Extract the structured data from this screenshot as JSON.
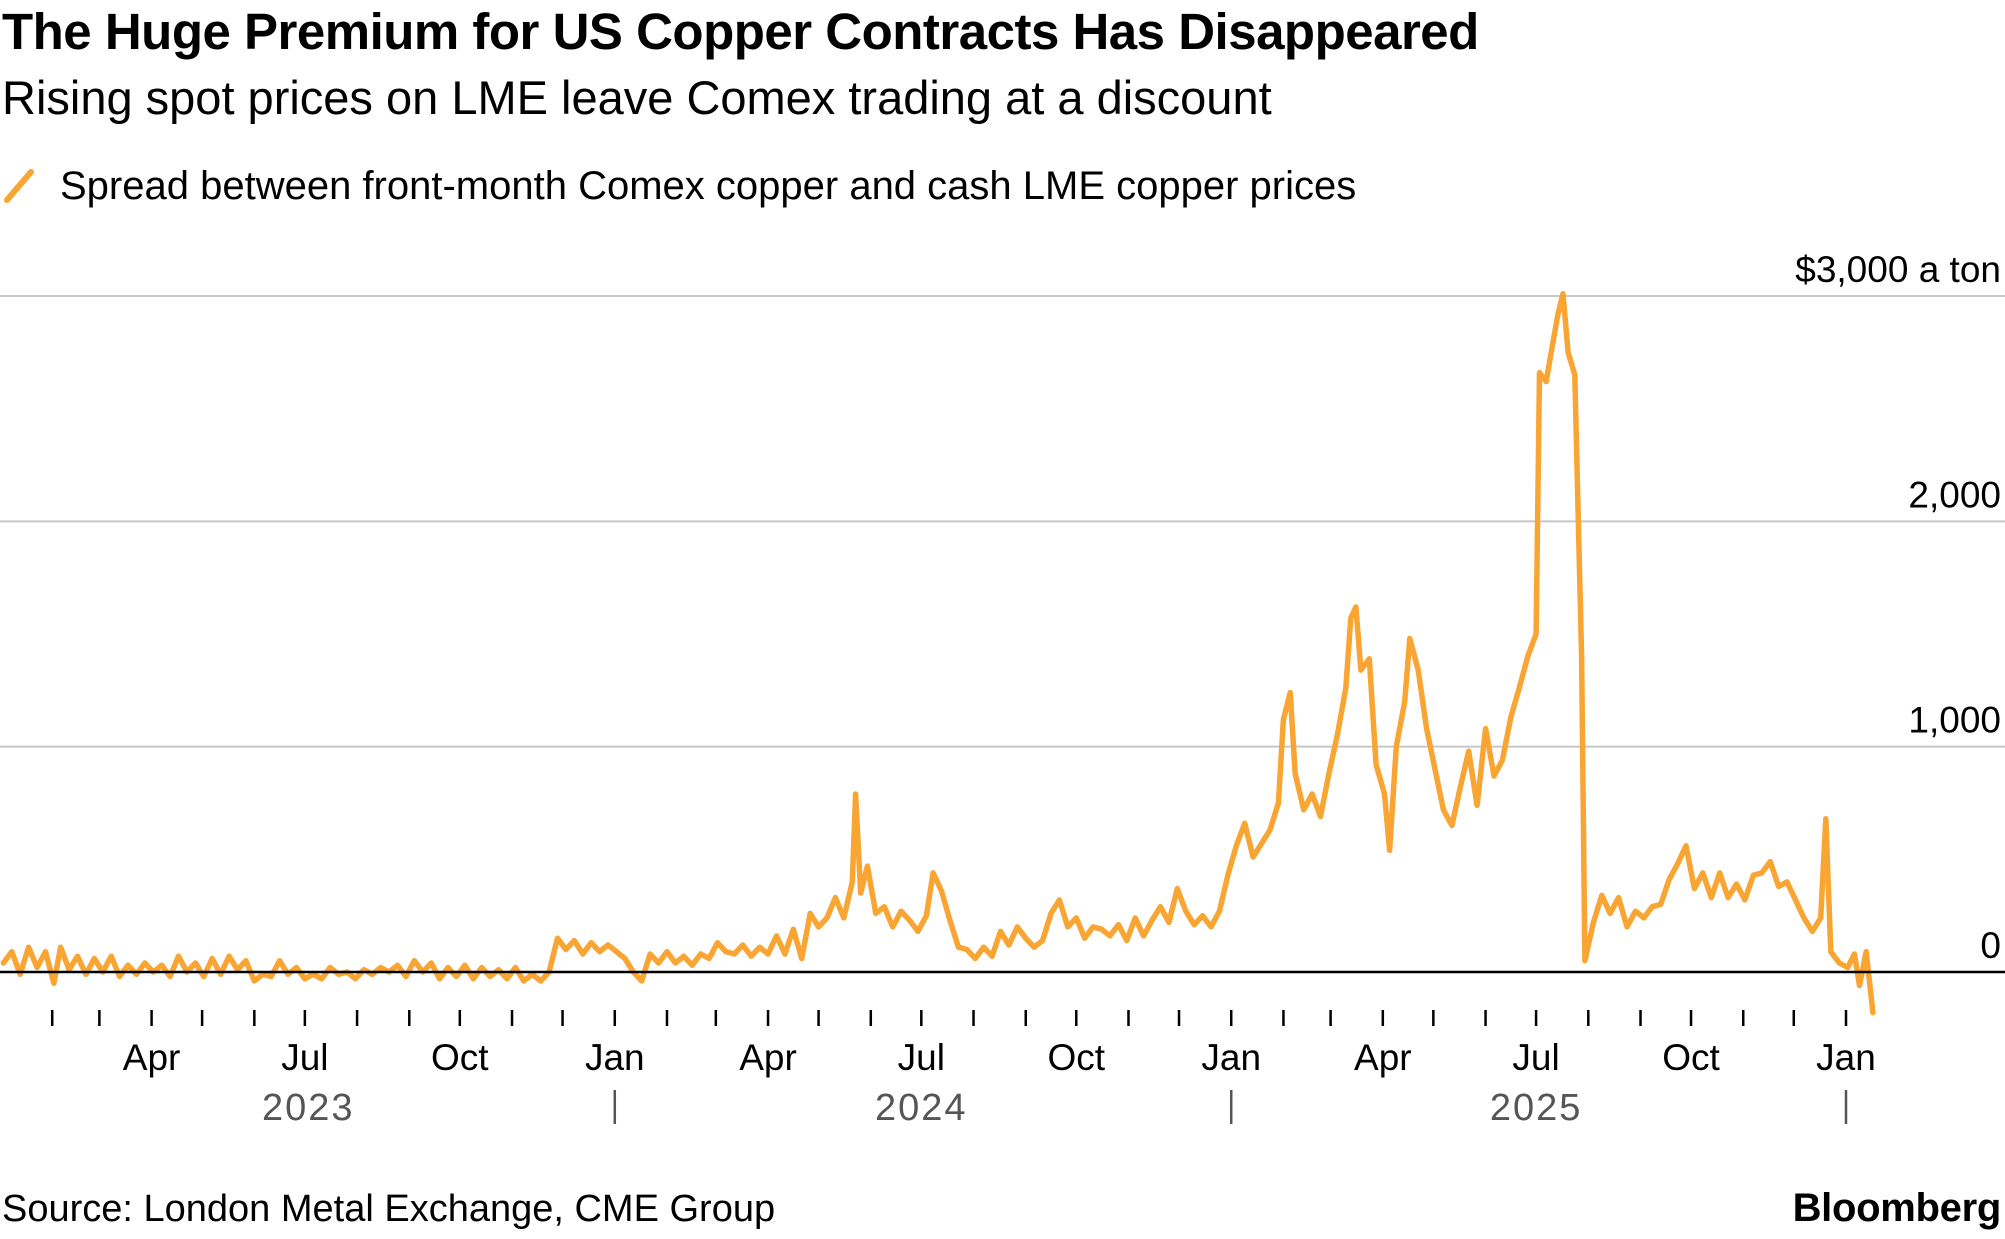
{
  "header": {
    "title": "The Huge Premium for US Copper Contracts Has Disappeared",
    "subtitle": "Rising spot prices on LME leave Comex trading at a discount"
  },
  "legend": {
    "label": "Spread between front-month Comex copper and cash LME copper prices",
    "icon": "diagonal-line-swatch"
  },
  "footer": {
    "source": "Source: London Metal Exchange, CME Group",
    "brand": "Bloomberg"
  },
  "colors": {
    "series": "#F8A533",
    "grid": "#C8C8C8",
    "zero_line": "#000000",
    "year_text": "#555555"
  },
  "chart_data": {
    "type": "line",
    "title": "The Huge Premium for US Copper Contracts Has Disappeared",
    "subtitle": "Rising spot prices on LME leave Comex trading at a discount",
    "y_unit_label": "$3,000 a ton",
    "y_ticks": [
      {
        "value": 0,
        "label": "0"
      },
      {
        "value": 1000,
        "label": "1,000"
      },
      {
        "value": 2000,
        "label": "2,000"
      },
      {
        "value": 3000,
        "label": "$3,000 a ton"
      }
    ],
    "ylim": [
      -200,
      3000
    ],
    "xlim": [
      "2023-01-01",
      "2026-01-20"
    ],
    "grid": true,
    "x_month_ticks": [
      {
        "date": "2023-04-01",
        "label": "Apr"
      },
      {
        "date": "2023-07-01",
        "label": "Jul"
      },
      {
        "date": "2023-10-01",
        "label": "Oct"
      },
      {
        "date": "2024-01-01",
        "label": "Jan"
      },
      {
        "date": "2024-04-01",
        "label": "Apr"
      },
      {
        "date": "2024-07-01",
        "label": "Jul"
      },
      {
        "date": "2024-10-01",
        "label": "Oct"
      },
      {
        "date": "2025-01-01",
        "label": "Jan"
      },
      {
        "date": "2025-04-01",
        "label": "Apr"
      },
      {
        "date": "2025-07-01",
        "label": "Jul"
      },
      {
        "date": "2025-10-01",
        "label": "Oct"
      },
      {
        "date": "2026-01-01",
        "label": "Jan"
      }
    ],
    "x_year_labels": [
      {
        "label": "2023",
        "center": "2023-07-03"
      },
      {
        "label": "2024",
        "center": "2024-07-01"
      },
      {
        "label": "2025",
        "center": "2025-07-01"
      }
    ],
    "x_year_separators": [
      "2024-01-01",
      "2025-01-01",
      "2026-01-01"
    ],
    "series": [
      {
        "name": "Spread between front-month Comex copper and cash LME copper prices",
        "points": [
          [
            "2023-01-03",
            40
          ],
          [
            "2023-01-08",
            90
          ],
          [
            "2023-01-13",
            -10
          ],
          [
            "2023-01-18",
            110
          ],
          [
            "2023-01-23",
            20
          ],
          [
            "2023-01-28",
            90
          ],
          [
            "2023-02-02",
            -50
          ],
          [
            "2023-02-06",
            110
          ],
          [
            "2023-02-11",
            10
          ],
          [
            "2023-02-16",
            70
          ],
          [
            "2023-02-21",
            -10
          ],
          [
            "2023-02-26",
            60
          ],
          [
            "2023-03-03",
            0
          ],
          [
            "2023-03-08",
            70
          ],
          [
            "2023-03-13",
            -20
          ],
          [
            "2023-03-18",
            30
          ],
          [
            "2023-03-23",
            -10
          ],
          [
            "2023-03-28",
            40
          ],
          [
            "2023-04-02",
            0
          ],
          [
            "2023-04-07",
            30
          ],
          [
            "2023-04-12",
            -20
          ],
          [
            "2023-04-17",
            70
          ],
          [
            "2023-04-22",
            0
          ],
          [
            "2023-04-27",
            40
          ],
          [
            "2023-05-02",
            -20
          ],
          [
            "2023-05-07",
            60
          ],
          [
            "2023-05-12",
            -10
          ],
          [
            "2023-05-17",
            70
          ],
          [
            "2023-05-22",
            10
          ],
          [
            "2023-05-27",
            50
          ],
          [
            "2023-06-01",
            -40
          ],
          [
            "2023-06-06",
            -10
          ],
          [
            "2023-06-11",
            -20
          ],
          [
            "2023-06-16",
            50
          ],
          [
            "2023-06-21",
            -10
          ],
          [
            "2023-06-26",
            20
          ],
          [
            "2023-07-01",
            -30
          ],
          [
            "2023-07-06",
            -10
          ],
          [
            "2023-07-11",
            -30
          ],
          [
            "2023-07-16",
            20
          ],
          [
            "2023-07-21",
            -10
          ],
          [
            "2023-07-26",
            0
          ],
          [
            "2023-07-31",
            -30
          ],
          [
            "2023-08-05",
            10
          ],
          [
            "2023-08-10",
            -10
          ],
          [
            "2023-08-15",
            20
          ],
          [
            "2023-08-20",
            0
          ],
          [
            "2023-08-25",
            30
          ],
          [
            "2023-08-30",
            -20
          ],
          [
            "2023-09-04",
            50
          ],
          [
            "2023-09-09",
            0
          ],
          [
            "2023-09-14",
            40
          ],
          [
            "2023-09-19",
            -30
          ],
          [
            "2023-09-24",
            20
          ],
          [
            "2023-09-29",
            -20
          ],
          [
            "2023-10-04",
            30
          ],
          [
            "2023-10-09",
            -30
          ],
          [
            "2023-10-14",
            20
          ],
          [
            "2023-10-19",
            -20
          ],
          [
            "2023-10-24",
            10
          ],
          [
            "2023-10-29",
            -30
          ],
          [
            "2023-11-03",
            20
          ],
          [
            "2023-11-08",
            -40
          ],
          [
            "2023-11-13",
            -10
          ],
          [
            "2023-11-18",
            -40
          ],
          [
            "2023-11-23",
            0
          ],
          [
            "2023-11-28",
            150
          ],
          [
            "2023-12-03",
            100
          ],
          [
            "2023-12-08",
            140
          ],
          [
            "2023-12-13",
            80
          ],
          [
            "2023-12-18",
            130
          ],
          [
            "2023-12-23",
            90
          ],
          [
            "2023-12-28",
            120
          ],
          [
            "2024-01-02",
            90
          ],
          [
            "2024-01-07",
            60
          ],
          [
            "2024-01-12",
            0
          ],
          [
            "2024-01-17",
            -40
          ],
          [
            "2024-01-22",
            80
          ],
          [
            "2024-01-27",
            40
          ],
          [
            "2024-02-01",
            90
          ],
          [
            "2024-02-06",
            40
          ],
          [
            "2024-02-11",
            70
          ],
          [
            "2024-02-16",
            30
          ],
          [
            "2024-02-21",
            80
          ],
          [
            "2024-02-26",
            60
          ],
          [
            "2024-03-02",
            130
          ],
          [
            "2024-03-07",
            90
          ],
          [
            "2024-03-12",
            80
          ],
          [
            "2024-03-17",
            120
          ],
          [
            "2024-03-22",
            70
          ],
          [
            "2024-03-27",
            110
          ],
          [
            "2024-04-01",
            80
          ],
          [
            "2024-04-06",
            160
          ],
          [
            "2024-04-11",
            80
          ],
          [
            "2024-04-16",
            190
          ],
          [
            "2024-04-21",
            60
          ],
          [
            "2024-04-26",
            260
          ],
          [
            "2024-05-01",
            200
          ],
          [
            "2024-05-06",
            240
          ],
          [
            "2024-05-11",
            330
          ],
          [
            "2024-05-16",
            240
          ],
          [
            "2024-05-21",
            400
          ],
          [
            "2024-05-23",
            790
          ],
          [
            "2024-05-26",
            350
          ],
          [
            "2024-05-30",
            470
          ],
          [
            "2024-06-04",
            260
          ],
          [
            "2024-06-09",
            290
          ],
          [
            "2024-06-14",
            200
          ],
          [
            "2024-06-19",
            270
          ],
          [
            "2024-06-24",
            230
          ],
          [
            "2024-06-29",
            180
          ],
          [
            "2024-07-04",
            250
          ],
          [
            "2024-07-08",
            440
          ],
          [
            "2024-07-13",
            360
          ],
          [
            "2024-07-18",
            230
          ],
          [
            "2024-07-23",
            110
          ],
          [
            "2024-07-28",
            100
          ],
          [
            "2024-08-02",
            60
          ],
          [
            "2024-08-07",
            110
          ],
          [
            "2024-08-12",
            70
          ],
          [
            "2024-08-17",
            180
          ],
          [
            "2024-08-22",
            120
          ],
          [
            "2024-08-27",
            200
          ],
          [
            "2024-09-01",
            150
          ],
          [
            "2024-09-06",
            110
          ],
          [
            "2024-09-11",
            140
          ],
          [
            "2024-09-16",
            260
          ],
          [
            "2024-09-21",
            320
          ],
          [
            "2024-09-26",
            200
          ],
          [
            "2024-10-01",
            240
          ],
          [
            "2024-10-06",
            150
          ],
          [
            "2024-10-11",
            200
          ],
          [
            "2024-10-16",
            190
          ],
          [
            "2024-10-21",
            160
          ],
          [
            "2024-10-26",
            210
          ],
          [
            "2024-10-31",
            140
          ],
          [
            "2024-11-05",
            240
          ],
          [
            "2024-11-10",
            160
          ],
          [
            "2024-11-15",
            230
          ],
          [
            "2024-11-20",
            290
          ],
          [
            "2024-11-25",
            220
          ],
          [
            "2024-11-30",
            370
          ],
          [
            "2024-12-05",
            270
          ],
          [
            "2024-12-10",
            210
          ],
          [
            "2024-12-15",
            250
          ],
          [
            "2024-12-20",
            200
          ],
          [
            "2024-12-25",
            270
          ],
          [
            "2024-12-30",
            430
          ],
          [
            "2025-01-04",
            560
          ],
          [
            "2025-01-09",
            660
          ],
          [
            "2025-01-14",
            510
          ],
          [
            "2025-01-19",
            570
          ],
          [
            "2025-01-24",
            630
          ],
          [
            "2025-01-29",
            750
          ],
          [
            "2025-02-01",
            1120
          ],
          [
            "2025-02-05",
            1240
          ],
          [
            "2025-02-08",
            880
          ],
          [
            "2025-02-13",
            720
          ],
          [
            "2025-02-18",
            790
          ],
          [
            "2025-02-23",
            690
          ],
          [
            "2025-02-28",
            880
          ],
          [
            "2025-03-05",
            1050
          ],
          [
            "2025-03-10",
            1260
          ],
          [
            "2025-03-13",
            1570
          ],
          [
            "2025-03-16",
            1620
          ],
          [
            "2025-03-19",
            1340
          ],
          [
            "2025-03-24",
            1390
          ],
          [
            "2025-03-28",
            920
          ],
          [
            "2025-04-02",
            790
          ],
          [
            "2025-04-05",
            540
          ],
          [
            "2025-04-09",
            1000
          ],
          [
            "2025-04-14",
            1200
          ],
          [
            "2025-04-17",
            1480
          ],
          [
            "2025-04-22",
            1340
          ],
          [
            "2025-04-27",
            1080
          ],
          [
            "2025-05-02",
            900
          ],
          [
            "2025-05-07",
            720
          ],
          [
            "2025-05-12",
            650
          ],
          [
            "2025-05-17",
            820
          ],
          [
            "2025-05-22",
            980
          ],
          [
            "2025-05-27",
            740
          ],
          [
            "2025-06-01",
            1080
          ],
          [
            "2025-06-06",
            870
          ],
          [
            "2025-06-11",
            940
          ],
          [
            "2025-06-16",
            1130
          ],
          [
            "2025-06-21",
            1260
          ],
          [
            "2025-06-26",
            1400
          ],
          [
            "2025-07-01",
            1500
          ],
          [
            "2025-07-03",
            2660
          ],
          [
            "2025-07-07",
            2620
          ],
          [
            "2025-07-10",
            2750
          ],
          [
            "2025-07-14",
            2920
          ],
          [
            "2025-07-17",
            3010
          ],
          [
            "2025-07-20",
            2750
          ],
          [
            "2025-07-24",
            2650
          ],
          [
            "2025-07-28",
            1400
          ],
          [
            "2025-07-30",
            50
          ],
          [
            "2025-08-04",
            220
          ],
          [
            "2025-08-09",
            340
          ],
          [
            "2025-08-14",
            260
          ],
          [
            "2025-08-19",
            330
          ],
          [
            "2025-08-24",
            200
          ],
          [
            "2025-08-29",
            270
          ],
          [
            "2025-09-03",
            240
          ],
          [
            "2025-09-08",
            290
          ],
          [
            "2025-09-13",
            300
          ],
          [
            "2025-09-18",
            410
          ],
          [
            "2025-09-23",
            480
          ],
          [
            "2025-09-28",
            560
          ],
          [
            "2025-10-03",
            370
          ],
          [
            "2025-10-08",
            440
          ],
          [
            "2025-10-13",
            330
          ],
          [
            "2025-10-18",
            440
          ],
          [
            "2025-10-23",
            330
          ],
          [
            "2025-10-28",
            390
          ],
          [
            "2025-11-02",
            320
          ],
          [
            "2025-11-07",
            430
          ],
          [
            "2025-11-12",
            440
          ],
          [
            "2025-11-17",
            490
          ],
          [
            "2025-11-22",
            380
          ],
          [
            "2025-11-27",
            400
          ],
          [
            "2025-12-02",
            320
          ],
          [
            "2025-12-07",
            240
          ],
          [
            "2025-12-12",
            180
          ],
          [
            "2025-12-17",
            240
          ],
          [
            "2025-12-20",
            680
          ],
          [
            "2025-12-23",
            90
          ],
          [
            "2025-12-28",
            40
          ],
          [
            "2026-01-02",
            20
          ],
          [
            "2026-01-06",
            80
          ],
          [
            "2026-01-09",
            -60
          ],
          [
            "2026-01-13",
            90
          ],
          [
            "2026-01-17",
            -180
          ]
        ]
      }
    ]
  }
}
